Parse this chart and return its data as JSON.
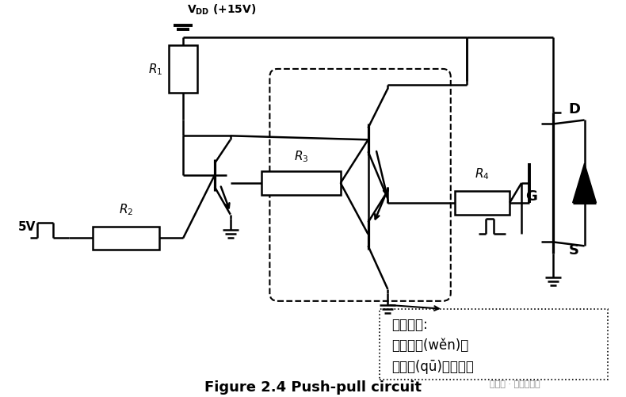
{
  "title": "Figure 2.4 Push-pull circuit",
  "annotation_text": "推挽電路:\n高頻下穩(wěn)定\n柵極驅(qū)動功率小",
  "watermark": "公眾號 · 硬件攻城獅",
  "vdd_label": "V",
  "vdd_sub": "DD",
  "vdd_val": " (+15V)",
  "label_R1": "R",
  "label_R1_sub": "1",
  "label_R2": "R",
  "label_R2_sub": "2",
  "label_R3": "R",
  "label_R3_sub": "3",
  "label_R4": "R",
  "label_R4_sub": "4",
  "label_5V": "5V",
  "label_D": "D",
  "label_G": "G",
  "label_S": "S",
  "bg_color": "#ffffff",
  "line_color": "#000000",
  "lw": 1.8
}
